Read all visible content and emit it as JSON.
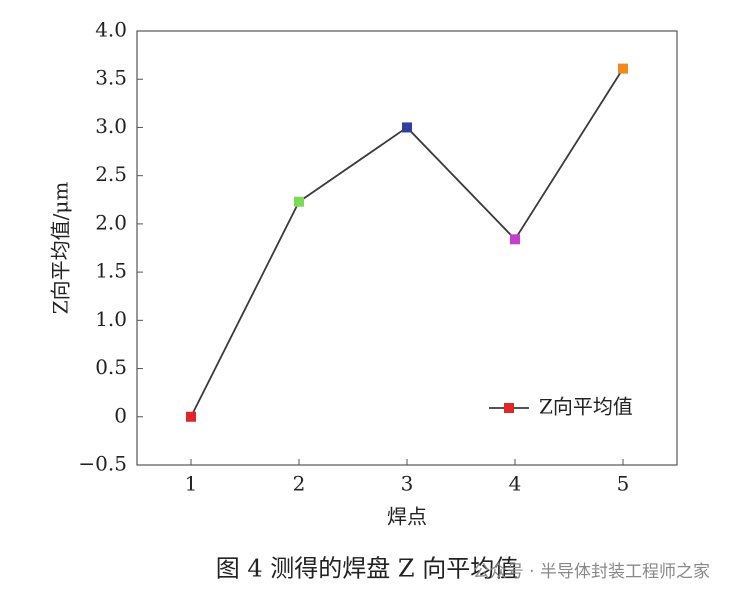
{
  "chart_data": {
    "type": "line",
    "x": [
      1,
      2,
      3,
      4,
      5
    ],
    "series": [
      {
        "name": "Z向平均值",
        "color": "#3a3a3a",
        "marker_colors": [
          "#e0252b",
          "#7ed957",
          "#2e3f9e",
          "#c43fd0",
          "#f08a1c"
        ],
        "values": [
          0,
          2.23,
          3.0,
          1.84,
          3.61
        ]
      }
    ],
    "xlabel": "焊点",
    "ylabel": "Z向平均值/μm",
    "xlim": [
      0.5,
      5.5
    ],
    "xticks": [
      1,
      2,
      3,
      4,
      5
    ],
    "ylim": [
      -0.5,
      4.0
    ],
    "yticks": [
      {
        "value": -0.5,
        "label": "−0.5"
      },
      0,
      0.5,
      {
        "value": 1.0,
        "label": "1.0"
      },
      1.5,
      {
        "value": 2.0,
        "label": "2.0"
      },
      2.5,
      {
        "value": 3.0,
        "label": "3.0"
      },
      3.5,
      {
        "value": 4.0,
        "label": "4.0"
      }
    ],
    "legend": "lower right",
    "caption": "图 4  测得的焊盘 Z 向平均值",
    "watermark": "公众号 · 半导体封装工程师之家"
  }
}
